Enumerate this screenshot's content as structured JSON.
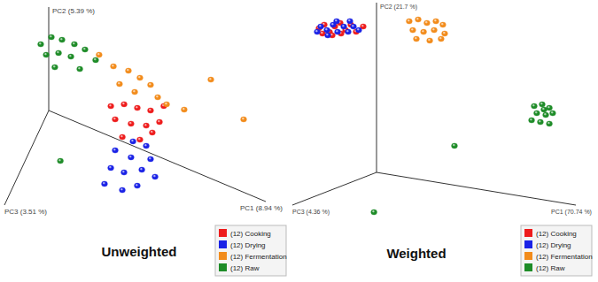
{
  "chart_data": [
    {
      "type": "scatter3d",
      "title": "Unweighted",
      "x_label": "PC1 (8.94 %)",
      "y_label": "PC2 (5.39 %)",
      "z_label": "PC3 (3.51 %)",
      "xlim": [
        0,
        1
      ],
      "ylim": [
        0,
        1
      ],
      "zlim": [
        0,
        1
      ],
      "tick_labels": false,
      "legend": "bottom-right",
      "series": [
        {
          "name": "(12) Cooking",
          "color": "#ee1c1c",
          "x": [
            0.327,
            0.388,
            0.449,
            0.51,
            0.571,
            0.347,
            0.42,
            0.49,
            0.551,
            0.38,
            0.461,
            0.518
          ],
          "y": [
            0.513,
            0.585,
            0.603,
            0.632,
            0.729,
            0.403,
            0.425,
            0.468,
            0.557,
            0.261,
            0.307,
            0.426
          ],
          "z": [
            0.2,
            0.2,
            0.2,
            0.2,
            0.2,
            0.2,
            0.2,
            0.2,
            0.2,
            0.2,
            0.2,
            0.2
          ]
        },
        {
          "name": "(12) Drying",
          "color": "#1a22e6",
          "x": [
            0.429,
            0.49,
            0.347,
            0.42,
            0.51,
            0.388,
            0.449,
            0.531,
            0.592,
            0.359,
            0.441,
            0.51
          ],
          "y": [
            0.262,
            0.272,
            0.103,
            0.1,
            0.162,
            0.244,
            0.254,
            0.352,
            0.338,
            0.064,
            0.076,
            0.179
          ],
          "z": [
            0.2,
            0.2,
            0.2,
            0.2,
            0.2,
            0.5,
            0.5,
            0.5,
            0.5,
            0.5,
            0.5,
            0.5
          ]
        },
        {
          "name": "(12) Fermentation",
          "color": "#f28c1c",
          "x": [
            0.273,
            0.339,
            0.408,
            0.461,
            0.51,
            0.367,
            0.437,
            0.543,
            0.584,
            0.665,
            0.747,
            0.898
          ],
          "y": [
            0.962,
            0.908,
            0.927,
            0.905,
            0.879,
            0.762,
            0.747,
            0.789,
            0.757,
            0.777,
            0.956,
            0.705
          ],
          "z": [
            0.2,
            0.2,
            0.2,
            0.2,
            0.2,
            0.2,
            0.2,
            0.2,
            0.2,
            0.2,
            0,
            0
          ]
        },
        {
          "name": "(12) Raw",
          "color": "#1e8c28",
          "x": [
            0.004,
            0.053,
            0.102,
            0.159,
            0.029,
            0.086,
            0.143,
            0.208,
            0.257,
            0.069,
            0.184,
            0.176
          ],
          "y": [
            0.827,
            0.939,
            0.956,
            0.964,
            0.747,
            0.815,
            0.83,
            0.956,
            0.897,
            0.662,
            0.746,
            0.216
          ],
          "z": [
            0.2,
            0.2,
            0.2,
            0.2,
            0.2,
            0.2,
            0.2,
            0.2,
            0.2,
            0.2,
            0.2,
            0.6
          ]
        }
      ]
    },
    {
      "type": "scatter3d",
      "title": "Weighted",
      "x_label": "PC1 (70.74 %)",
      "y_label": "PC2 (21.7 %)",
      "z_label": "PC3 (4.36 %)",
      "xlim": [
        0,
        1
      ],
      "ylim": [
        0,
        1
      ],
      "zlim": [
        0,
        1
      ],
      "tick_labels": false,
      "legend": "bottom-right",
      "series": [
        {
          "name": "(12) Cooking",
          "color": "#ee1c1c",
          "x": [
            0,
            0,
            0,
            0,
            0,
            0,
            0,
            0,
            0,
            0,
            0,
            0
          ],
          "y": [
            0.981,
            0.99,
            0.935,
            0.955,
            0.964,
            0.909,
            0.929,
            0.875,
            0.942,
            0.899,
            0.89,
            0.909
          ],
          "z": [
            0.684,
            0.621,
            0.558,
            0.495,
            0.432,
            0.368,
            0.305,
            0.242,
            0.642,
            0.421,
            0.158,
            0.526
          ]
        },
        {
          "name": "(12) Drying",
          "color": "#1a22e6",
          "x": [
            0,
            0,
            0,
            0,
            0,
            0,
            0,
            0,
            0,
            0,
            0,
            0
          ],
          "y": [
            0.987,
            0.952,
            0.969,
            0.917,
            0.934,
            0.893,
            0.912,
            0.879,
            0.919,
            0.982,
            0.952,
            0.964
          ],
          "z": [
            0.663,
            0.589,
            0.516,
            0.463,
            0.389,
            0.337,
            0.274,
            0.211,
            0.579,
            0.474,
            0.316,
            0.705
          ]
        },
        {
          "name": "(12) Fermentation",
          "color": "#f28c1c",
          "x": [
            0.164,
            0.209,
            0.253,
            0.298,
            0.333,
            0.182,
            0.236,
            0.289,
            0.342,
            0.2,
            0.267,
            0.324
          ],
          "y": [
            0.922,
            0.941,
            0.929,
            0.948,
            0.934,
            0.873,
            0.873,
            0.894,
            0.884,
            0.825,
            0.828,
            0.849
          ],
          "z": [
            0,
            0,
            0,
            0,
            0,
            0,
            0,
            0,
            0,
            0,
            0,
            0
          ]
        },
        {
          "name": "(12) Raw",
          "color": "#1e8c28",
          "x": [
            0.791,
            0.831,
            0.867,
            0.804,
            0.849,
            0.884,
            0.778,
            0.822,
            0.867,
            0.84,
            0.391,
            0.352
          ],
          "y": [
            0.543,
            0.561,
            0.547,
            0.504,
            0.502,
            0.519,
            0.457,
            0.455,
            0.454,
            0.532,
            0.232,
            0
          ],
          "z": [
            0,
            0,
            0,
            0,
            0,
            0,
            0,
            0,
            0,
            0,
            0,
            0.864
          ]
        }
      ]
    }
  ]
}
